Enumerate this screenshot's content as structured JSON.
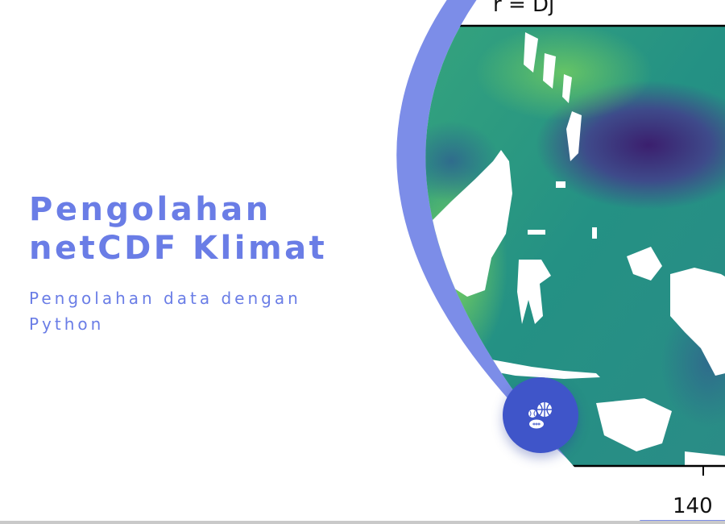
{
  "hero": {
    "title_line1": "Pengolahan",
    "title_line2": "netCDF Klimat",
    "subtitle": "Pengolahan data dengan Python"
  },
  "map_figure": {
    "title_fragment": "r = Dj",
    "tick_label": "140"
  },
  "fab": {
    "icon": "sports-balls-icon",
    "color": "#3f55c9"
  },
  "colors": {
    "accent": "#6a7de6",
    "ring": "#7c8de8",
    "map_low": "#3b1f6e",
    "map_mid": "#2b9787",
    "map_high": "#6fcf57"
  }
}
